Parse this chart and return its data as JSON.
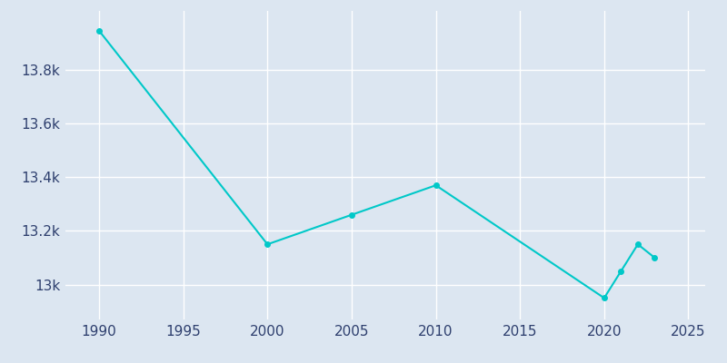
{
  "years": [
    1990,
    2000,
    2005,
    2010,
    2020,
    2021,
    2022,
    2023
  ],
  "population": [
    13946,
    13150,
    13260,
    13370,
    12950,
    13050,
    13150,
    13100
  ],
  "line_color": "#00c8c8",
  "marker_color": "#00c8c8",
  "bg_color": "#dce6f1",
  "plot_bg_color": "#dce6f1",
  "grid_color": "#ffffff",
  "tick_label_color": "#2e3f6e",
  "xlim": [
    1988,
    2026
  ],
  "ylim": [
    12870,
    14020
  ],
  "xticks": [
    1990,
    1995,
    2000,
    2005,
    2010,
    2015,
    2020,
    2025
  ],
  "ytick_values": [
    13000,
    13200,
    13400,
    13600,
    13800
  ],
  "ytick_labels": [
    "13k",
    "13.2k",
    "13.4k",
    "13.6k",
    "13.8k"
  ]
}
